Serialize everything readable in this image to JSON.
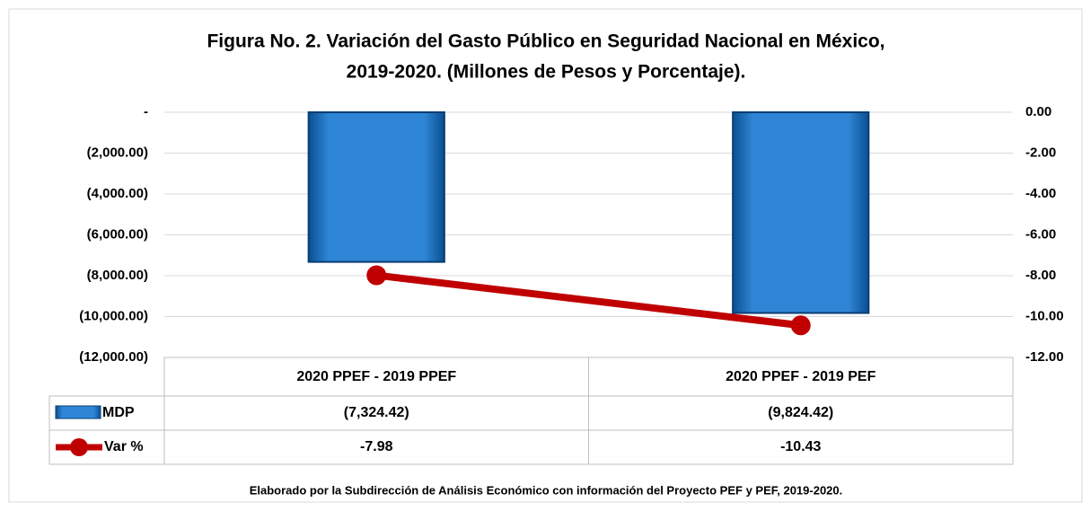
{
  "chart_data": {
    "type": "bar",
    "title": [
      "Figura No. 2. Variación del Gasto Público en Seguridad Nacional en México,",
      "2019-2020.  (Millones de Pesos y Porcentaje)."
    ],
    "categories": [
      "2020 PPEF - 2019 PPEF",
      "2020 PPEF - 2019 PEF"
    ],
    "series": [
      {
        "name": "MDP",
        "type": "bar",
        "color": "#1f6fbf",
        "values": [
          -7324.42,
          -9824.42
        ],
        "value_labels": [
          "(7,324.42)",
          "(9,824.42)"
        ]
      },
      {
        "name": "Var %",
        "type": "line",
        "axis": "y2",
        "color": "#c00000",
        "values": [
          -7.98,
          -10.43
        ]
      }
    ],
    "ylim": [
      -12000,
      0
    ],
    "yticks": [
      {
        "value": 0,
        "label": "-"
      },
      {
        "value": -2000,
        "label": "(2,000.00)"
      },
      {
        "value": -4000,
        "label": "(4,000.00)"
      },
      {
        "value": -6000,
        "label": "(6,000.00)"
      },
      {
        "value": -8000,
        "label": "(8,000.00)"
      },
      {
        "value": -10000,
        "label": "(10,000.00)"
      },
      {
        "value": -12000,
        "label": "(12,000.00)"
      }
    ],
    "y2lim": [
      -12,
      0
    ],
    "y2ticks": [
      {
        "value": 0,
        "label": "0.00"
      },
      {
        "value": -2,
        "label": "-2.00"
      },
      {
        "value": -4,
        "label": "-4.00"
      },
      {
        "value": -6,
        "label": "-6.00"
      },
      {
        "value": -8,
        "label": "-8.00"
      },
      {
        "value": -10,
        "label": "-10.00"
      },
      {
        "value": -12,
        "label": "-12.00"
      }
    ],
    "grid": true,
    "note": "Elaborado por la Subdirección de Análisis Económico con información del Proyecto PEF y PEF, 2019-2020."
  }
}
